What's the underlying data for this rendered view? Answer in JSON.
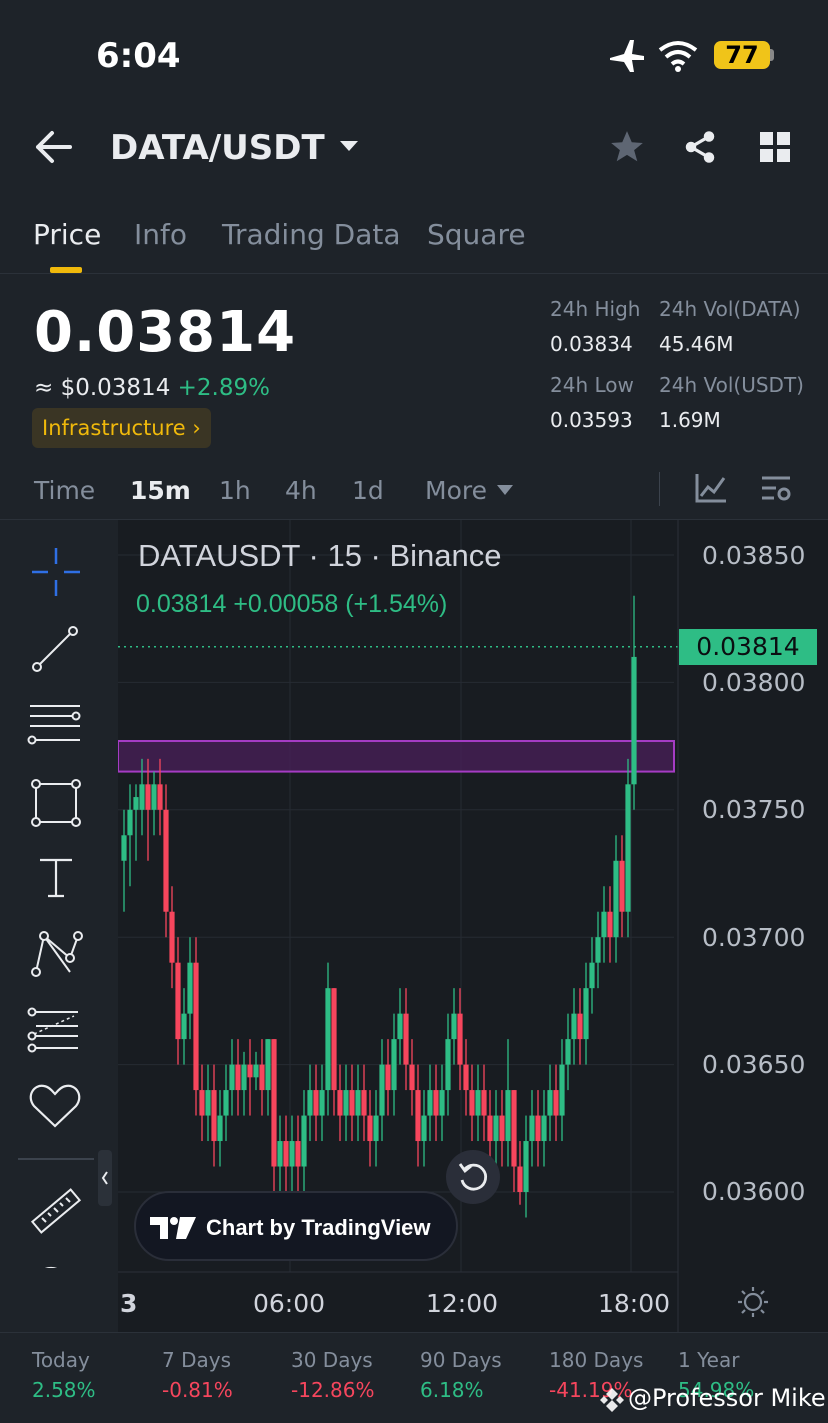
{
  "status_bar": {
    "time": "6:04",
    "battery": "77"
  },
  "header": {
    "pair": "DATA/USDT"
  },
  "tabs": [
    "Price",
    "Info",
    "Trading Data",
    "Square"
  ],
  "price": {
    "last": "0.03814",
    "approx_usd": "≈ $0.03814",
    "change_pct": "+2.89%",
    "tag": "Infrastructure ›"
  },
  "stats": {
    "high_label": "24h High",
    "high": "0.03834",
    "vol_base_label": "24h Vol(DATA)",
    "vol_base": "45.46M",
    "low_label": "24h Low",
    "low": "0.03593",
    "vol_quote_label": "24h Vol(USDT)",
    "vol_quote": "1.69M"
  },
  "intervals": {
    "time": "Time",
    "m15": "15m",
    "h1": "1h",
    "h4": "4h",
    "d1": "1d",
    "more": "More"
  },
  "chart": {
    "title": "DATAUSDT · 15 · Binance",
    "subtitle": "0.03814  +0.00058 (+1.54%)",
    "current_price_tag": "0.03814",
    "tv_badge": "Chart by TradingView"
  },
  "chart_data": {
    "type": "candlestick",
    "symbol": "DATAUSDT",
    "interval": "15",
    "exchange": "Binance",
    "y_ticks": [
      "0.03850",
      "0.03800",
      "0.03750",
      "0.03700",
      "0.03650",
      "0.03600"
    ],
    "ylim": [
      0.0359,
      0.0385
    ],
    "x_ticks": [
      "3",
      "06:00",
      "12:00",
      "18:00"
    ],
    "last_price": 0.03814,
    "zone": {
      "low": 0.03765,
      "high": 0.03777,
      "color": "#7b2d8e"
    },
    "candles": [
      [
        0.0373,
        0.0374,
        0.0371,
        0.0375
      ],
      [
        0.0374,
        0.0375,
        0.0372,
        0.0376
      ],
      [
        0.0375,
        0.03755,
        0.0373,
        0.0376
      ],
      [
        0.0375,
        0.0376,
        0.0374,
        0.0377
      ],
      [
        0.0376,
        0.0375,
        0.0373,
        0.0377
      ],
      [
        0.0375,
        0.0376,
        0.0374,
        0.03765
      ],
      [
        0.0376,
        0.0375,
        0.0374,
        0.0377
      ],
      [
        0.0375,
        0.0371,
        0.037,
        0.0376
      ],
      [
        0.0371,
        0.0369,
        0.0368,
        0.0372
      ],
      [
        0.0369,
        0.0366,
        0.0365,
        0.037
      ],
      [
        0.0366,
        0.0367,
        0.0365,
        0.0368
      ],
      [
        0.0367,
        0.0369,
        0.0366,
        0.037
      ],
      [
        0.0369,
        0.0364,
        0.0363,
        0.037
      ],
      [
        0.0364,
        0.0363,
        0.0362,
        0.0365
      ],
      [
        0.0363,
        0.0364,
        0.0362,
        0.0365
      ],
      [
        0.0364,
        0.0362,
        0.0361,
        0.0365
      ],
      [
        0.0362,
        0.0363,
        0.0361,
        0.0364
      ],
      [
        0.0363,
        0.0364,
        0.0362,
        0.0365
      ],
      [
        0.0364,
        0.0365,
        0.0363,
        0.0366
      ],
      [
        0.0365,
        0.0364,
        0.0363,
        0.0366
      ],
      [
        0.0364,
        0.0365,
        0.0363,
        0.03655
      ],
      [
        0.0365,
        0.03645,
        0.0363,
        0.0366
      ],
      [
        0.03645,
        0.0365,
        0.0364,
        0.03655
      ],
      [
        0.0365,
        0.0364,
        0.0363,
        0.0366
      ],
      [
        0.0364,
        0.0366,
        0.0363,
        0.0366
      ],
      [
        0.0366,
        0.0361,
        0.036,
        0.0366
      ],
      [
        0.0361,
        0.0362,
        0.036,
        0.0363
      ],
      [
        0.0362,
        0.0361,
        0.036,
        0.0363
      ],
      [
        0.0361,
        0.0362,
        0.036,
        0.0363
      ],
      [
        0.0362,
        0.0361,
        0.036,
        0.0363
      ],
      [
        0.0361,
        0.0363,
        0.036,
        0.0364
      ],
      [
        0.0363,
        0.0364,
        0.0362,
        0.0365
      ],
      [
        0.0364,
        0.0363,
        0.0362,
        0.0365
      ],
      [
        0.0363,
        0.0364,
        0.0362,
        0.0365
      ],
      [
        0.0364,
        0.0368,
        0.0363,
        0.0369
      ],
      [
        0.0368,
        0.0364,
        0.0363,
        0.0368
      ],
      [
        0.0364,
        0.0363,
        0.0362,
        0.0365
      ],
      [
        0.0363,
        0.0364,
        0.0362,
        0.0365
      ],
      [
        0.0364,
        0.0363,
        0.0362,
        0.0365
      ],
      [
        0.0363,
        0.0364,
        0.0362,
        0.0365
      ],
      [
        0.0364,
        0.0363,
        0.0362,
        0.0365
      ],
      [
        0.0363,
        0.0362,
        0.0361,
        0.0364
      ],
      [
        0.0362,
        0.0363,
        0.0361,
        0.0364
      ],
      [
        0.0363,
        0.0365,
        0.0362,
        0.0366
      ],
      [
        0.0365,
        0.0364,
        0.0363,
        0.0366
      ],
      [
        0.0364,
        0.0366,
        0.0363,
        0.0367
      ],
      [
        0.0366,
        0.0367,
        0.0365,
        0.0368
      ],
      [
        0.0367,
        0.0365,
        0.0364,
        0.0368
      ],
      [
        0.0365,
        0.0364,
        0.0363,
        0.0366
      ],
      [
        0.0364,
        0.0362,
        0.0361,
        0.0365
      ],
      [
        0.0362,
        0.0363,
        0.0361,
        0.0364
      ],
      [
        0.0363,
        0.0364,
        0.0362,
        0.0365
      ],
      [
        0.0364,
        0.0363,
        0.0362,
        0.0365
      ],
      [
        0.0363,
        0.0364,
        0.0362,
        0.0365
      ],
      [
        0.0364,
        0.0366,
        0.0363,
        0.0367
      ],
      [
        0.0366,
        0.0367,
        0.0365,
        0.0368
      ],
      [
        0.0367,
        0.0365,
        0.0364,
        0.0368
      ],
      [
        0.0365,
        0.0364,
        0.0363,
        0.0366
      ],
      [
        0.0364,
        0.0363,
        0.0362,
        0.0365
      ],
      [
        0.0363,
        0.0364,
        0.0362,
        0.0365
      ],
      [
        0.0364,
        0.0363,
        0.0362,
        0.0365
      ],
      [
        0.0363,
        0.0362,
        0.0361,
        0.0364
      ],
      [
        0.0362,
        0.0363,
        0.0361,
        0.0364
      ],
      [
        0.0363,
        0.0362,
        0.0361,
        0.0364
      ],
      [
        0.0362,
        0.0364,
        0.0361,
        0.0366
      ],
      [
        0.0364,
        0.0361,
        0.036,
        0.0364
      ],
      [
        0.0361,
        0.036,
        0.03595,
        0.0362
      ],
      [
        0.036,
        0.0362,
        0.0359,
        0.0363
      ],
      [
        0.0362,
        0.0363,
        0.0361,
        0.0364
      ],
      [
        0.0363,
        0.0362,
        0.0361,
        0.0364
      ],
      [
        0.0362,
        0.0363,
        0.0361,
        0.0364
      ],
      [
        0.0363,
        0.0364,
        0.0362,
        0.0365
      ],
      [
        0.0364,
        0.0363,
        0.0362,
        0.0365
      ],
      [
        0.0363,
        0.0365,
        0.0362,
        0.0366
      ],
      [
        0.0365,
        0.0366,
        0.0364,
        0.0367
      ],
      [
        0.0366,
        0.0367,
        0.0365,
        0.0368
      ],
      [
        0.0367,
        0.0366,
        0.0365,
        0.0368
      ],
      [
        0.0366,
        0.0368,
        0.0365,
        0.0369
      ],
      [
        0.0368,
        0.0369,
        0.0367,
        0.037
      ],
      [
        0.0369,
        0.037,
        0.0368,
        0.0371
      ],
      [
        0.037,
        0.0371,
        0.0369,
        0.0372
      ],
      [
        0.0371,
        0.037,
        0.0369,
        0.0372
      ],
      [
        0.037,
        0.0373,
        0.0369,
        0.0374
      ],
      [
        0.0373,
        0.0371,
        0.037,
        0.0374
      ],
      [
        0.0371,
        0.0376,
        0.037,
        0.0377
      ],
      [
        0.0376,
        0.0381,
        0.0375,
        0.03834
      ]
    ]
  },
  "bottom_perf": [
    {
      "label": "Today",
      "value": "2.58%",
      "sign": "pos"
    },
    {
      "label": "7 Days",
      "value": "-0.81%",
      "sign": "neg"
    },
    {
      "label": "30 Days",
      "value": "-12.86%",
      "sign": "neg"
    },
    {
      "label": "90 Days",
      "value": "6.18%",
      "sign": "pos"
    },
    {
      "label": "180 Days",
      "value": "-41.19%",
      "sign": "neg"
    },
    {
      "label": "1 Year",
      "value": "54.98%",
      "sign": "pos"
    }
  ],
  "watermark": "@Professor Mike",
  "colors": {
    "up": "#2ebd85",
    "down": "#f6465d",
    "accent": "#f0b90b",
    "bg": "#1e2329",
    "chart_bg": "#161a1e"
  }
}
